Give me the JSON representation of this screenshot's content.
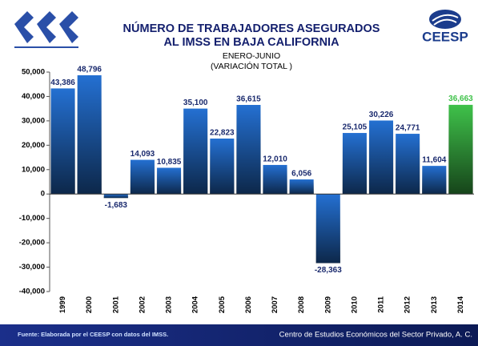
{
  "chart_data": {
    "type": "bar",
    "title_lines": [
      "NÚMERO DE TRABAJADORES ASEGURADOS",
      "AL IMSS EN BAJA CALIFORNIA"
    ],
    "subtitle_lines": [
      "ENERO-JUNIO",
      "(VARIACIÓN TOTAL )"
    ],
    "logo_text": "CEESP",
    "source": "Fuente: Elaborada por el CEESP con datos del IMSS.",
    "footer": "Centro de Estudios Económicos del Sector Privado, A. C.",
    "categories": [
      "1999",
      "2000",
      "2001",
      "2002",
      "2003",
      "2004",
      "2005",
      "2006",
      "2007",
      "2008",
      "2009",
      "2010",
      "2011",
      "2012",
      "2013",
      "2014"
    ],
    "values": [
      43386,
      48796,
      -1683,
      14093,
      10835,
      35100,
      22823,
      36615,
      12010,
      6056,
      -28363,
      25105,
      30226,
      24771,
      11604,
      36663
    ],
    "value_labels": [
      "43,386",
      "48,796",
      "-1,683",
      "14,093",
      "10,835",
      "35,100",
      "22,823",
      "36,615",
      "12,010",
      "6,056",
      "-28,363",
      "25,105",
      "30,226",
      "24,771",
      "11,604",
      "36,663"
    ],
    "colors": [
      "#2470d2",
      "#2470d2",
      "#2470d2",
      "#2470d2",
      "#2470d2",
      "#2470d2",
      "#2470d2",
      "#2470d2",
      "#2470d2",
      "#2470d2",
      "#2470d2",
      "#2470d2",
      "#2470d2",
      "#2470d2",
      "#2470d2",
      "#3fc24a"
    ],
    "ylim": [
      -40000,
      50000
    ],
    "yticks": [
      {
        "value": -40000,
        "label": "-40,000"
      },
      {
        "value": -30000,
        "label": "-30,000"
      },
      {
        "value": -20000,
        "label": "-20,000"
      },
      {
        "value": -10000,
        "label": "-10,000"
      },
      0,
      {
        "value": 10000,
        "label": "10,000"
      },
      {
        "value": 20000,
        "label": "20,000"
      },
      {
        "value": 30000,
        "label": "30,000"
      },
      {
        "value": 40000,
        "label": "40,000"
      },
      {
        "value": 50000,
        "label": "50,000"
      }
    ],
    "grid": false
  }
}
